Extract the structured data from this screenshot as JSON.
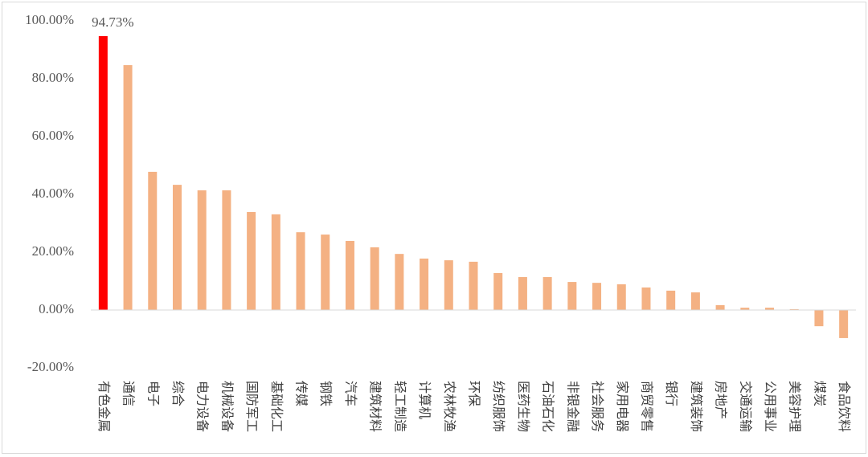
{
  "chart_data": {
    "type": "bar",
    "categories": [
      "有色金属",
      "通信",
      "电子",
      "综合",
      "电力设备",
      "机械设备",
      "国防军工",
      "基础化工",
      "传媒",
      "钢铁",
      "汽车",
      "建筑材料",
      "轻工制造",
      "计算机",
      "农林牧渔",
      "环保",
      "纺织服饰",
      "医药生物",
      "石油石化",
      "非银金融",
      "社会服务",
      "家用电器",
      "商贸零售",
      "银行",
      "建筑装饰",
      "房地产",
      "交通运输",
      "公用事业",
      "美容护理",
      "煤炭",
      "食品饮料"
    ],
    "values": [
      94.73,
      84.7,
      47.8,
      43.3,
      41.4,
      41.4,
      33.9,
      33.1,
      26.9,
      26.1,
      23.9,
      21.7,
      19.4,
      17.8,
      17.2,
      16.7,
      12.8,
      11.4,
      11.4,
      9.7,
      9.4,
      8.9,
      7.8,
      6.7,
      6.1,
      1.7,
      0.8,
      0.8,
      0.3,
      -5.6,
      -9.7
    ],
    "value_labels": [
      "94.73%",
      null,
      null,
      null,
      null,
      null,
      null,
      null,
      null,
      null,
      null,
      null,
      null,
      null,
      null,
      null,
      null,
      null,
      null,
      null,
      null,
      null,
      null,
      null,
      null,
      null,
      null,
      null,
      null,
      null,
      null
    ],
    "colors": [
      "#ff0000",
      "#f4b183",
      "#f4b183",
      "#f4b183",
      "#f4b183",
      "#f4b183",
      "#f4b183",
      "#f4b183",
      "#f4b183",
      "#f4b183",
      "#f4b183",
      "#f4b183",
      "#f4b183",
      "#f4b183",
      "#f4b183",
      "#f4b183",
      "#f4b183",
      "#f4b183",
      "#f4b183",
      "#f4b183",
      "#f4b183",
      "#f4b183",
      "#f4b183",
      "#f4b183",
      "#f4b183",
      "#f4b183",
      "#f4b183",
      "#f4b183",
      "#f4b183",
      "#f4b183",
      "#f4b183"
    ],
    "ylim": [
      -20,
      100
    ],
    "yticks": [
      {
        "value": -20,
        "label": "-20.00%"
      },
      {
        "value": 0,
        "label": "0.00%"
      },
      {
        "value": 20,
        "label": "20.00%"
      },
      {
        "value": 40,
        "label": "40.00%"
      },
      {
        "value": 60,
        "label": "60.00%"
      },
      {
        "value": 80,
        "label": "80.00%"
      },
      {
        "value": 100,
        "label": "100.00%"
      }
    ],
    "grid": false
  }
}
